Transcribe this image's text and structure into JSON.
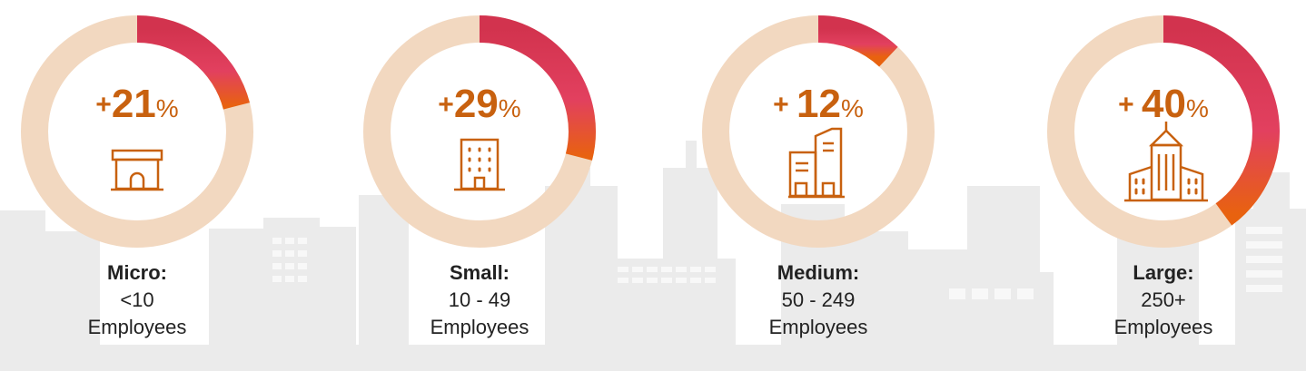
{
  "colors": {
    "track": "#f2d8c0",
    "seg_start": "#d2334e",
    "seg_mid": "#e2405f",
    "seg_end": "#e8620f",
    "accent": "#c8610f",
    "skyline": "#e8e8e8"
  },
  "chart_data": {
    "type": "donut",
    "series": [
      {
        "sign": "+",
        "number": "21",
        "unit": "%",
        "value": 21,
        "category": "Micro:",
        "range": "<10",
        "employees": "Employees",
        "icon": "shop-building-icon"
      },
      {
        "sign": "+",
        "number": "29",
        "unit": "%",
        "value": 29,
        "category": "Small:",
        "range": "10 - 49",
        "employees": "Employees",
        "icon": "office-block-icon"
      },
      {
        "sign": "+ ",
        "number": "12",
        "unit": "%",
        "value": 12,
        "category": "Medium:",
        "range": "50 - 249",
        "employees": "Employees",
        "icon": "office-towers-icon"
      },
      {
        "sign": "+ ",
        "number": "40",
        "unit": "%",
        "value": 40,
        "category": "Large:",
        "range": "250+",
        "employees": "Employees",
        "icon": "city-buildings-icon"
      }
    ]
  }
}
